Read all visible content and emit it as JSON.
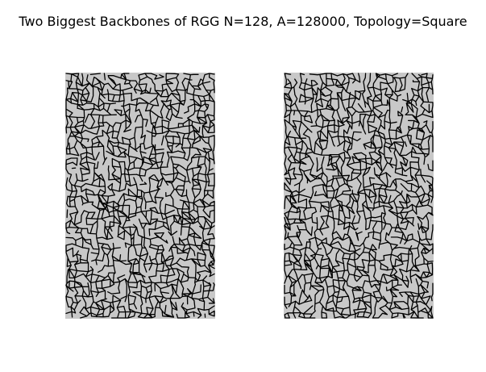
{
  "figure": {
    "title": "Two Biggest Backbones of RGG N=128, A=128000, Topology=Square"
  },
  "colors": {
    "background": "#ffffff",
    "fill": "#c8c8c8",
    "edge": "#000000"
  },
  "panels": [
    {
      "name": "backbone-1"
    },
    {
      "name": "backbone-2"
    }
  ]
}
